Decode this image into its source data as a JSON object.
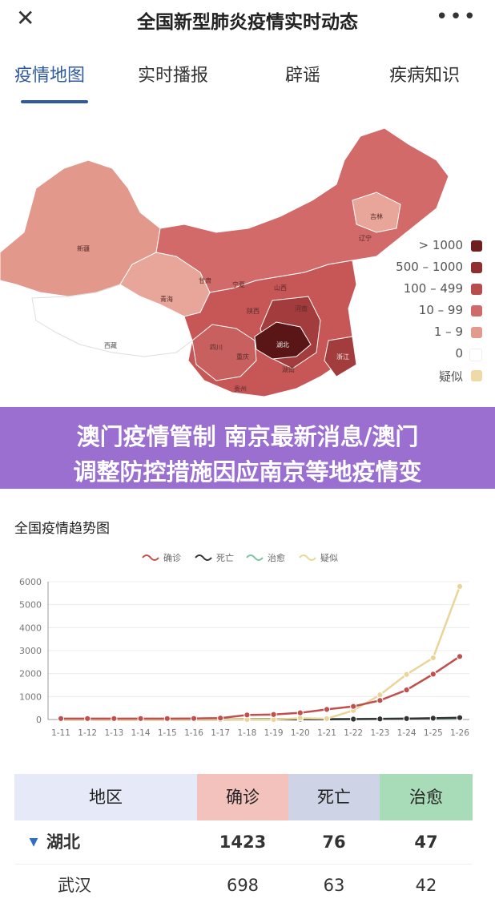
{
  "header": {
    "title": "全国新型肺炎疫情实时动态",
    "close_icon": "close-icon",
    "more_icon": "more-icon"
  },
  "tabs": [
    {
      "label": "疫情地图",
      "active": true
    },
    {
      "label": "实时播报",
      "active": false
    },
    {
      "label": "辟谣",
      "active": false
    },
    {
      "label": "疾病知识",
      "active": false
    }
  ],
  "map": {
    "legend": [
      {
        "label": "> 1000",
        "color": "#6e1f1f"
      },
      {
        "label": "500 – 1000",
        "color": "#8f2f2f"
      },
      {
        "label": "100 – 499",
        "color": "#b84d4d"
      },
      {
        "label": "10 – 99",
        "color": "#d06a6a"
      },
      {
        "label": "1 – 9",
        "color": "#e39a8e"
      },
      {
        "label": "0",
        "color": "#ffffff"
      },
      {
        "label": "疑似",
        "color": "#efd9a6"
      }
    ],
    "region_labels": [
      "新疆",
      "西藏",
      "青海",
      "甘肃",
      "宁夏",
      "陕西",
      "山西",
      "河南",
      "湖北",
      "湖南",
      "贵州",
      "重庆",
      "四川",
      "吉林",
      "辽宁",
      "浙江"
    ]
  },
  "banner": {
    "line1": "澳门疫情管制 南京最新消息/澳门",
    "line2": "调整防控措施因应南京等地疫情变"
  },
  "trend": {
    "title": "全国疫情趋势图",
    "legend": [
      {
        "name": "确诊",
        "color": "#c0504d"
      },
      {
        "name": "死亡",
        "color": "#333333"
      },
      {
        "name": "治愈",
        "color": "#7cc49e"
      },
      {
        "name": "疑似",
        "color": "#e9d49a"
      }
    ]
  },
  "chart_data": {
    "type": "line",
    "x": [
      "1-11",
      "1-12",
      "1-13",
      "1-14",
      "1-15",
      "1-16",
      "1-17",
      "1-18",
      "1-19",
      "1-20",
      "1-21",
      "1-22",
      "1-23",
      "1-24",
      "1-25",
      "1-26"
    ],
    "ylim": [
      0,
      6000
    ],
    "yticks": [
      0,
      1000,
      2000,
      3000,
      4000,
      5000,
      6000
    ],
    "series": [
      {
        "name": "确诊",
        "values": [
          41,
          41,
          41,
          41,
          41,
          45,
          62,
          198,
          218,
          291,
          440,
          571,
          830,
          1287,
          1975,
          2744
        ]
      },
      {
        "name": "死亡",
        "values": [
          1,
          1,
          1,
          1,
          2,
          2,
          2,
          3,
          3,
          6,
          9,
          17,
          25,
          41,
          56,
          80
        ]
      },
      {
        "name": "治愈",
        "values": [
          0,
          0,
          0,
          0,
          5,
          5,
          5,
          17,
          25,
          25,
          25,
          28,
          34,
          38,
          49,
          51
        ]
      },
      {
        "name": "疑似",
        "values": [
          0,
          0,
          0,
          0,
          0,
          0,
          0,
          0,
          0,
          54,
          37,
          393,
          1072,
          1965,
          2684,
          5794
        ]
      }
    ]
  },
  "table": {
    "headers": [
      {
        "label": "地区",
        "bg": "#e6e9f7"
      },
      {
        "label": "确诊",
        "bg": "#f3c2bd"
      },
      {
        "label": "死亡",
        "bg": "#cfd3e6"
      },
      {
        "label": "治愈",
        "bg": "#a8dbb8"
      }
    ],
    "rows": [
      {
        "region": "湖北",
        "expand_icon": "triangle-down-icon",
        "confirmed": "1423",
        "dead": "76",
        "cured": "47",
        "bold": true
      },
      {
        "region": "武汉",
        "confirmed": "698",
        "dead": "63",
        "cured": "42",
        "bold": false
      }
    ]
  }
}
